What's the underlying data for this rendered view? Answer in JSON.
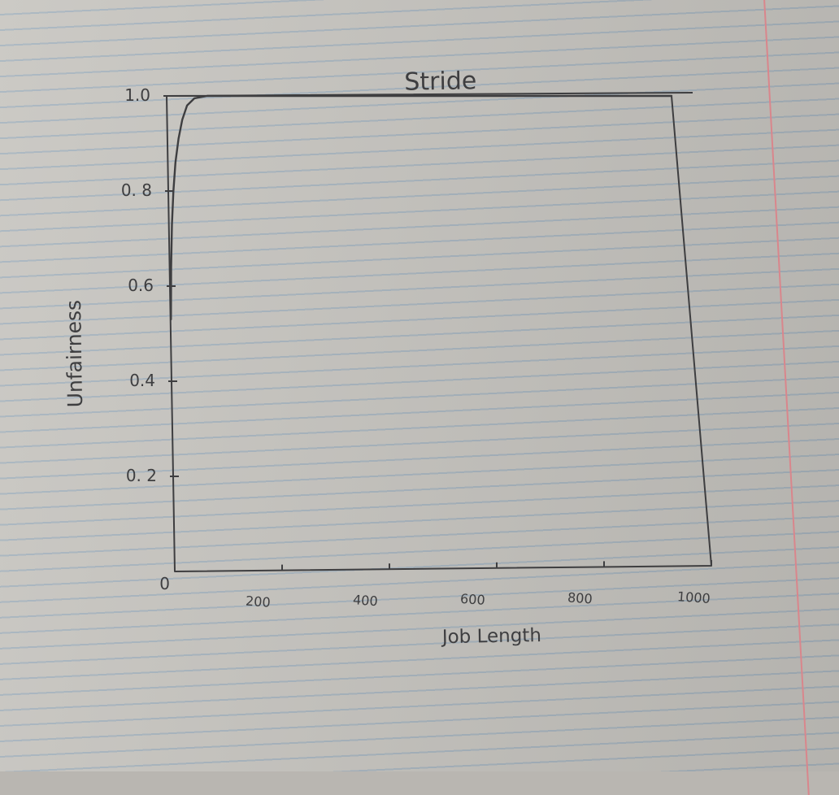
{
  "chart_data": {
    "type": "line",
    "title": "Stride",
    "xlabel": "Job Length",
    "ylabel": "Unfairness",
    "xlim": [
      0,
      1000
    ],
    "ylim": [
      0,
      1.0
    ],
    "x_ticks": [
      {
        "value": 200,
        "label": "200"
      },
      {
        "value": 400,
        "label": "400"
      },
      {
        "value": 600,
        "label": "600"
      },
      {
        "value": 800,
        "label": "800"
      },
      {
        "value": 1000,
        "label": "1000"
      }
    ],
    "y_ticks": [
      {
        "value": 0,
        "label": "0"
      },
      {
        "value": 0.2,
        "label": "0. 2"
      },
      {
        "value": 0.4,
        "label": "0.4"
      },
      {
        "value": 0.6,
        "label": "0.6"
      },
      {
        "value": 0.8,
        "label": "0. 8"
      },
      {
        "value": 1.0,
        "label": "1.0"
      }
    ],
    "grid": false,
    "series": [
      {
        "color": "#3e3e40",
        "points": [
          [
            1,
            0.53
          ],
          [
            3,
            0.64
          ],
          [
            6,
            0.73
          ],
          [
            10,
            0.8
          ],
          [
            15,
            0.86
          ],
          [
            22,
            0.91
          ],
          [
            30,
            0.95
          ],
          [
            40,
            0.98
          ],
          [
            55,
            0.995
          ],
          [
            80,
            1.0
          ],
          [
            200,
            1.0
          ],
          [
            400,
            1.0
          ],
          [
            600,
            1.0
          ],
          [
            800,
            1.0
          ],
          [
            1000,
            1.0
          ]
        ]
      }
    ]
  }
}
